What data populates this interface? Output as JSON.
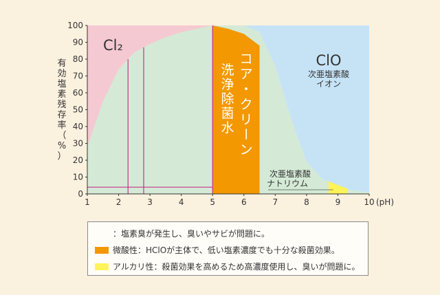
{
  "chart_data": {
    "type": "area",
    "ylabel": "有効塩素残存率（%）",
    "xlabel": "(pH)",
    "xlim": [
      1,
      10
    ],
    "ylim": [
      0,
      100
    ],
    "xticks": [
      "1",
      "2",
      "3",
      "4",
      "5",
      "6",
      "7",
      "8",
      "9",
      "10"
    ],
    "yticks": [
      "0",
      "10",
      "20",
      "30",
      "40",
      "50",
      "60",
      "70",
      "80",
      "90",
      "100"
    ],
    "regions": [
      {
        "label": "Cl₂",
        "color": "#f5c9d2",
        "x": [
          1,
          5
        ]
      },
      {
        "label": "ClO",
        "sublabel": "次亜塩素酸イオン",
        "color": "#c6e3f6",
        "x": [
          5,
          10
        ]
      }
    ],
    "series": [
      {
        "name": "",
        "color": "#d4ead6",
        "x": [
          1,
          1.5,
          2,
          2.5,
          3,
          3.5,
          4,
          4.5,
          5,
          5.5,
          6,
          6.5,
          7,
          7.5,
          8,
          8.5,
          9,
          9.5,
          10
        ],
        "y": [
          28,
          55,
          74,
          84,
          89,
          93,
          96,
          98,
          100,
          100,
          100,
          96,
          76,
          45,
          19,
          9,
          5,
          2,
          1
        ]
      }
    ],
    "highlights": [
      {
        "label": "コア・クリーン洗浄除菌水",
        "color": "#f39800",
        "x": [
          5,
          6.5
        ],
        "y_top": [
          100,
          98,
          95,
          88
        ]
      },
      {
        "label": "",
        "color": "#fff35a",
        "x": [
          8.7,
          9.3
        ]
      }
    ],
    "reference_lines": [
      {
        "x": 2.3,
        "y": 80
      },
      {
        "x": 2.8,
        "y": 87
      },
      {
        "x": 5.0,
        "y": 100
      },
      {
        "y": 4,
        "x": [
          1,
          5
        ]
      }
    ],
    "annotations": [
      {
        "text": "洗浄除菌水"
      },
      {
        "text": "コア・クリーン"
      },
      {
        "text": "次亜塩素酸"
      },
      {
        "text": "ナトリウム"
      }
    ]
  },
  "legend": {
    "items": [
      {
        "color": "#ffffff",
        "text": "：塩素臭が発生し、臭いやサビが問題に。"
      },
      {
        "color": "#f39800",
        "text": "微酸性：HClOが主体で、低い塩素濃度でも十分な殺菌効果。"
      },
      {
        "color": "#fff35a",
        "text": "アルカリ性：殺菌効果を高めるため高濃度使用し、臭いが問題に。"
      }
    ]
  }
}
